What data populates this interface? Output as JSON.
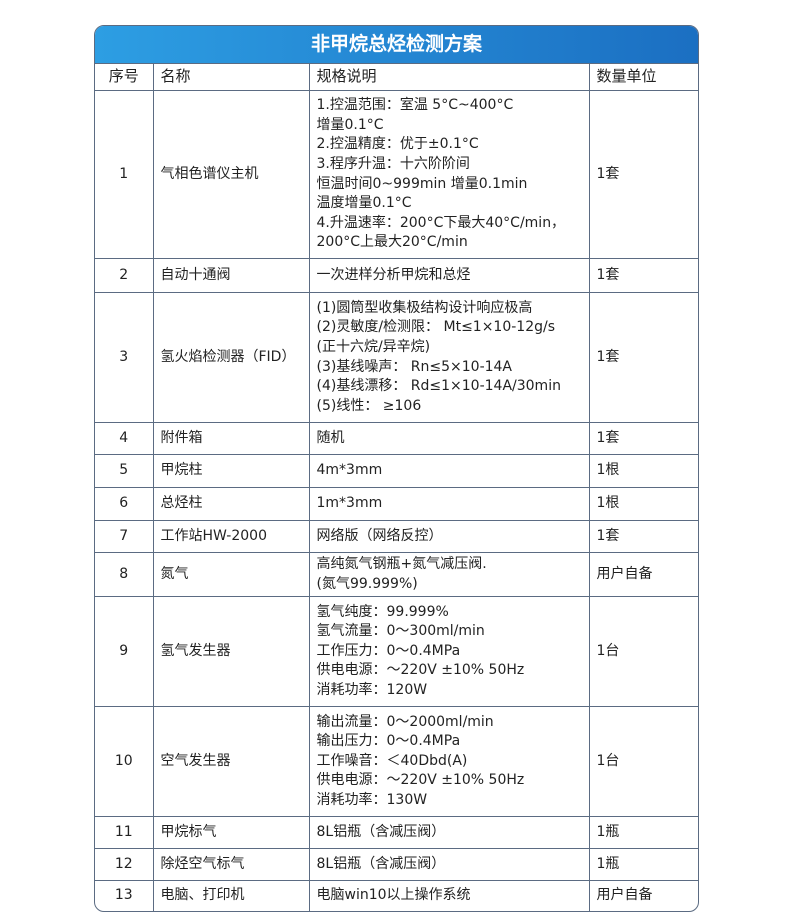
{
  "title": "非甲烷总烃检测方案",
  "header": [
    "序号",
    "名称",
    "规格说明",
    "数量单位"
  ],
  "rows": [
    {
      "no": "1",
      "name": "气相色谱仪主机",
      "spec": "1.控温范围：室温 5°C~400°C\n增量0.1°C\n2.控温精度：优于±0.1°C\n3.程序升温：十六阶阶间\n恒温时间0~999min 增量0.1min\n温度增量0.1°C\n4.升温速率：200°C下最大40°C/min，\n 200°C上最大20°C/min",
      "qty": "1套",
      "h": 168
    },
    {
      "no": "2",
      "name": "自动十通阀",
      "spec": "一次进样分析甲烷和总烃",
      "qty": "1套",
      "h": 34
    },
    {
      "no": "3",
      "name": "氢火焰检测器（FID）",
      "spec": "(1)圆筒型收集极结构设计响应极高\n(2)灵敏度/检测限： Mt≤1×10-12g/s\n(正十六烷/异辛烷)\n(3)基线噪声： Rn≤5×10-14A\n(4)基线漂移： Rd≤1×10-14A/30min\n(5)线性： ≥106",
      "qty": "1套",
      "h": 130
    },
    {
      "no": "4",
      "name": "附件箱",
      "spec": "随机",
      "qty": "1套",
      "h": 32
    },
    {
      "no": "5",
      "name": "甲烷柱",
      "spec": "4m*3mm",
      "qty": "1根",
      "h": 33
    },
    {
      "no": "6",
      "name": "总烃柱",
      "spec": "1m*3mm",
      "qty": "1根",
      "h": 33
    },
    {
      "no": "7",
      "name": "工作站HW-2000",
      "spec": "网络版（网络反控）",
      "qty": "1套",
      "h": 32
    },
    {
      "no": "8",
      "name": "氮气",
      "spec": "高纯氮气钢瓶+氮气减压阀.\n(氮气99.999%)",
      "qty": "用户自备",
      "h": 44
    },
    {
      "no": "9",
      "name": "氢气发生器",
      "spec": "氢气纯度：99.999%\n氢气流量：0～300ml/min\n工作压力：0～0.4MPa\n供电电源：～220V ±10% 50Hz\n消耗功率：120W",
      "qty": "1台",
      "h": 110
    },
    {
      "no": "10",
      "name": "空气发生器",
      "spec": "输出流量：0～2000ml/min\n输出压力：0～0.4MPa\n工作噪音：＜40Dbd(A)\n供电电源：～220V ±10% 50Hz\n消耗功率：130W",
      "qty": "1台",
      "h": 110
    },
    {
      "no": "11",
      "name": "甲烷标气",
      "spec": "8L铝瓶（含减压阀）",
      "qty": "1瓶",
      "h": 32
    },
    {
      "no": "12",
      "name": "除烃空气标气",
      "spec": "8L铝瓶（含减压阀）",
      "qty": "1瓶",
      "h": 32
    },
    {
      "no": "13",
      "name": "电脑、打印机",
      "spec": "电脑win10以上操作系统",
      "qty": "用户自备",
      "h": 30
    }
  ]
}
